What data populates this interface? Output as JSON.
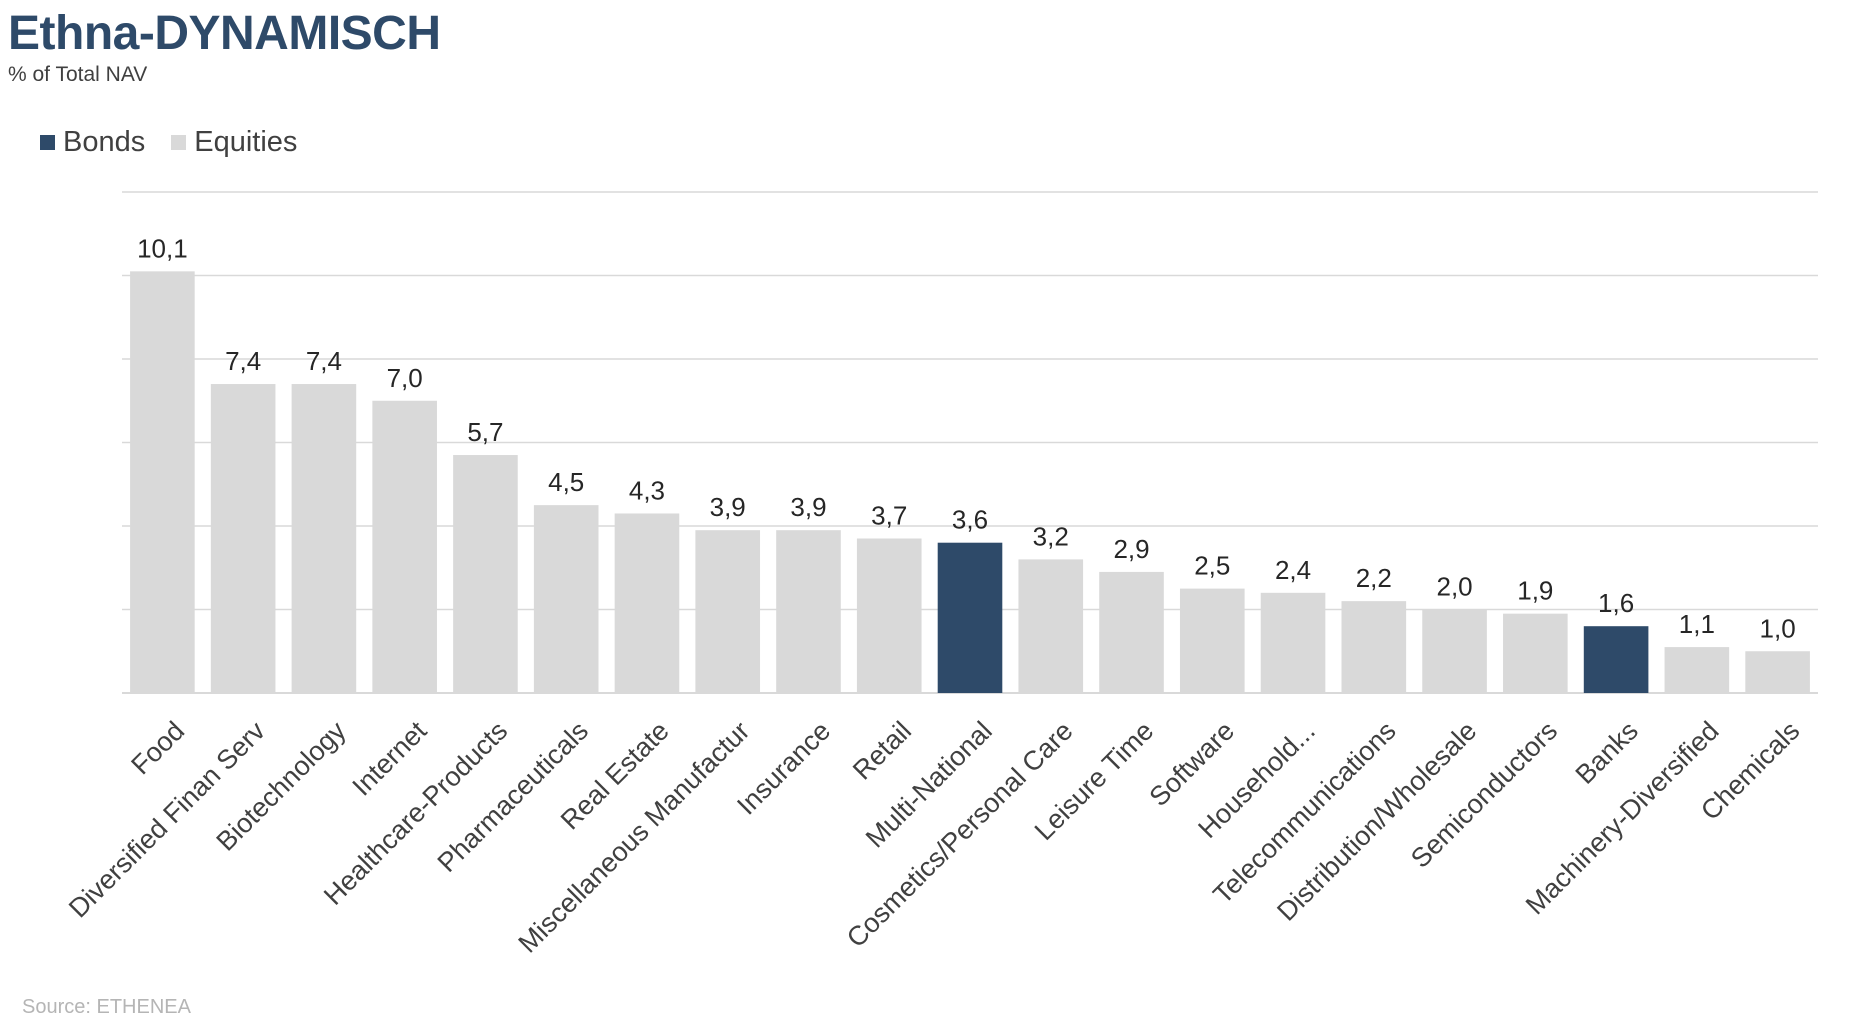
{
  "header": {
    "title": "Ethna-DYNAMISCH",
    "subtitle": "% of Total NAV"
  },
  "legend": [
    {
      "name": "Bonds",
      "color": "#2e4a69"
    },
    {
      "name": "Equities",
      "color": "#d9d9d9"
    }
  ],
  "footer": {
    "source": "Source: ETHENEA"
  },
  "chart_data": {
    "type": "bar",
    "title": "Ethna-DYNAMISCH",
    "subtitle": "% of Total NAV",
    "xlabel": "",
    "ylabel": "",
    "ylim": [
      0,
      12
    ],
    "grid": true,
    "legend_placement": "top-left",
    "categories": [
      "Food",
      "Diversified Finan Serv",
      "Biotechnology",
      "Internet",
      "Healthcare-Products",
      "Pharmaceuticals",
      "Real Estate",
      "Miscellaneous Manufactur",
      "Insurance",
      "Retail",
      "Multi-National",
      "Cosmetics/Personal Care",
      "Leisure Time",
      "Software",
      "Household...",
      "Telecommunications",
      "Distribution/Wholesale",
      "Semiconductors",
      "Banks",
      "Machinery-Diversified",
      "Chemicals"
    ],
    "values": [
      10.1,
      7.4,
      7.4,
      7.0,
      5.7,
      4.5,
      4.3,
      3.9,
      3.9,
      3.7,
      3.6,
      3.2,
      2.9,
      2.5,
      2.4,
      2.2,
      2.0,
      1.9,
      1.6,
      1.1,
      1.0
    ],
    "value_labels": [
      "10,1",
      "7,4",
      "7,4",
      "7,0",
      "5,7",
      "4,5",
      "4,3",
      "3,9",
      "3,9",
      "3,7",
      "3,6",
      "3,2",
      "2,9",
      "2,5",
      "2,4",
      "2,2",
      "2,0",
      "1,9",
      "1,6",
      "1,1",
      "1,0"
    ],
    "series_type": [
      "Equities",
      "Equities",
      "Equities",
      "Equities",
      "Equities",
      "Equities",
      "Equities",
      "Equities",
      "Equities",
      "Equities",
      "Bonds",
      "Equities",
      "Equities",
      "Equities",
      "Equities",
      "Equities",
      "Equities",
      "Equities",
      "Bonds",
      "Equities",
      "Equities"
    ],
    "colors": {
      "Bonds": "#2e4a69",
      "Equities": "#d9d9d9",
      "grid": "#d9d9d9"
    }
  }
}
